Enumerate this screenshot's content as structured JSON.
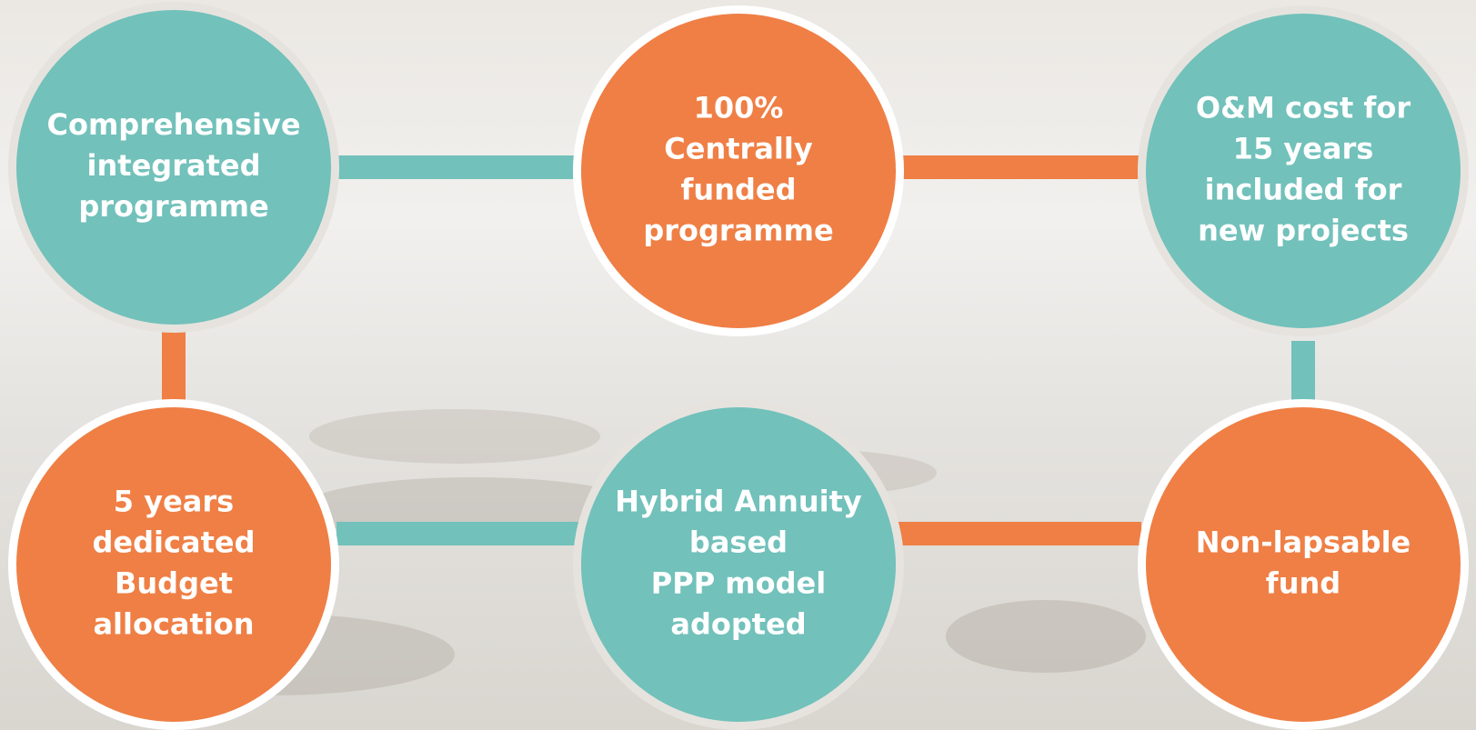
{
  "nodes": [
    {
      "lines": [
        "Comprehensive",
        "integrated",
        "programme"
      ]
    },
    {
      "lines": [
        "100%",
        "Centrally",
        "funded",
        "programme"
      ]
    },
    {
      "lines": [
        "O&M cost for",
        "15 years",
        "included for",
        "new projects"
      ]
    },
    {
      "lines": [
        "5 years",
        "dedicated",
        "Budget",
        "allocation"
      ]
    },
    {
      "lines": [
        "Hybrid Annuity",
        "based",
        "PPP model",
        "adopted"
      ]
    },
    {
      "lines": [
        "Non-lapsable",
        "fund"
      ]
    }
  ]
}
